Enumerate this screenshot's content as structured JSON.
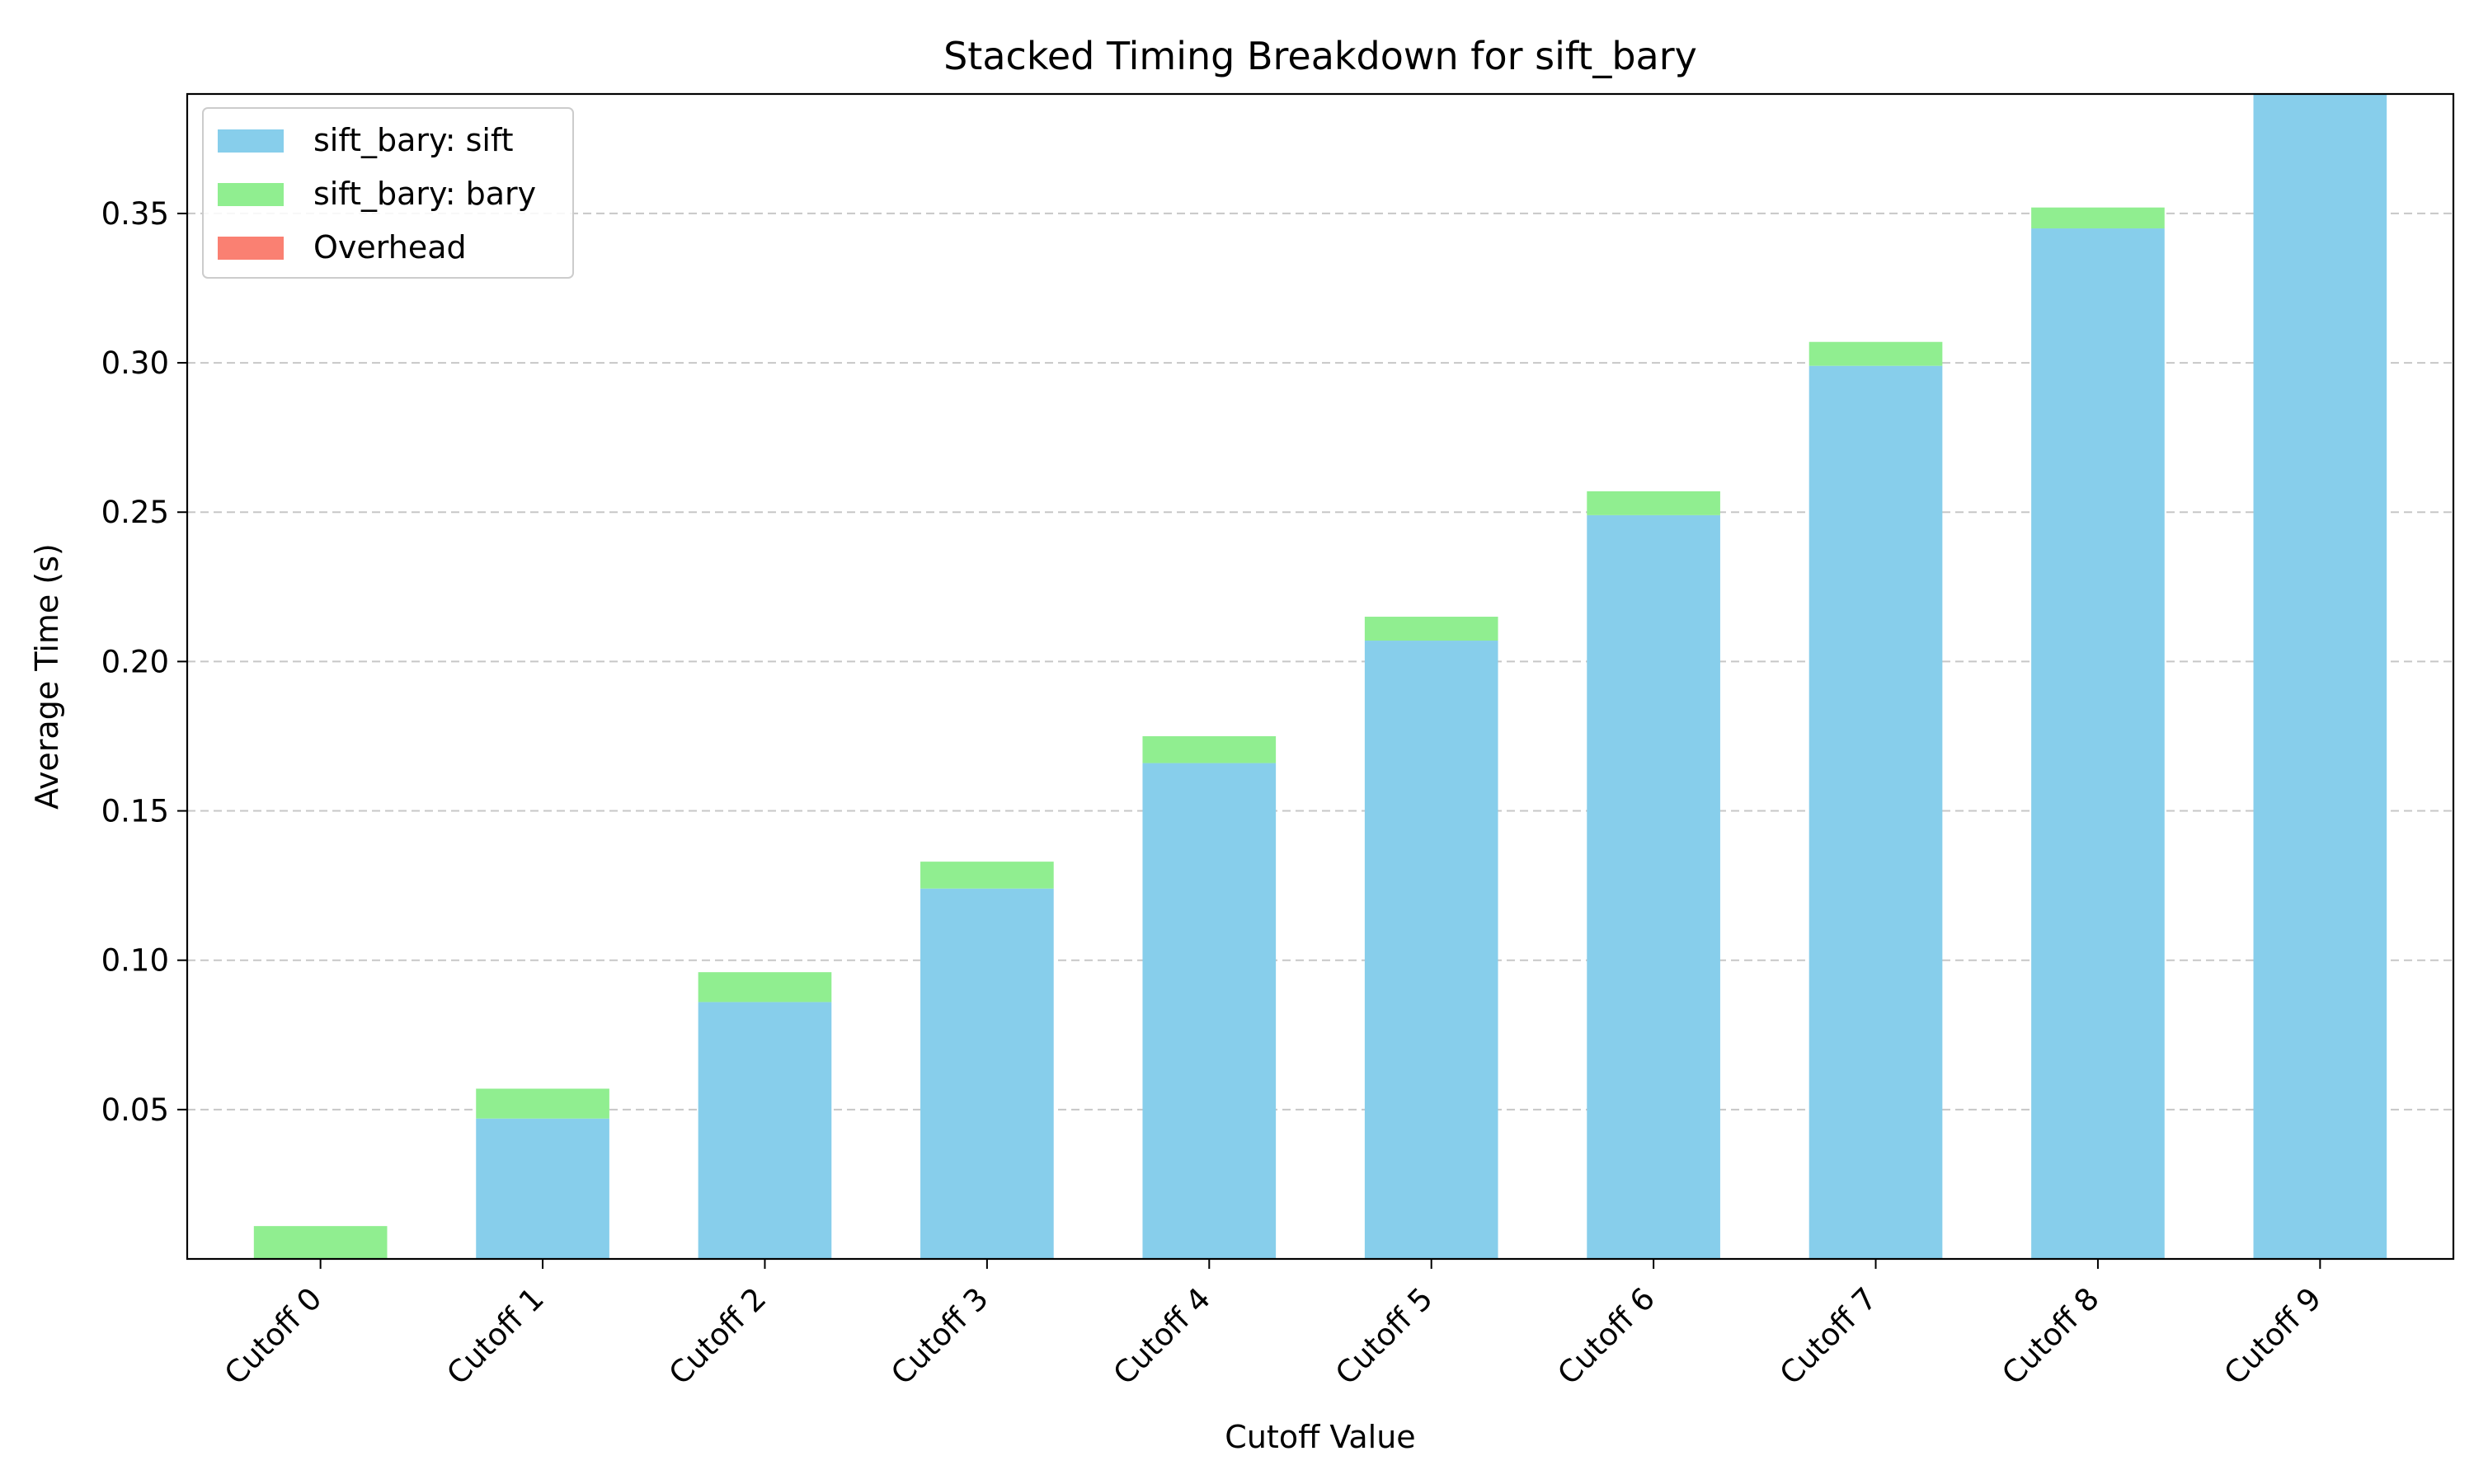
{
  "chart_data": {
    "type": "bar",
    "stacked": true,
    "title": "Stacked Timing Breakdown for sift_bary",
    "xlabel": "Cutoff Value",
    "ylabel": "Average Time (s)",
    "categories": [
      "Cutoff 0",
      "Cutoff 1",
      "Cutoff 2",
      "Cutoff 3",
      "Cutoff 4",
      "Cutoff 5",
      "Cutoff 6",
      "Cutoff 7",
      "Cutoff 8",
      "Cutoff 9"
    ],
    "series": [
      {
        "name": "sift_bary: sift",
        "color": "#87ceeb",
        "values": [
          0.0,
          0.047,
          0.086,
          0.124,
          0.166,
          0.207,
          0.249,
          0.299,
          0.345,
          0.39
        ]
      },
      {
        "name": "sift_bary: bary",
        "color": "#90ee90",
        "values": [
          0.011,
          0.01,
          0.01,
          0.009,
          0.009,
          0.008,
          0.008,
          0.008,
          0.007,
          0.0
        ]
      },
      {
        "name": "Overhead",
        "color": "#fa8072",
        "values": [
          0,
          0,
          0,
          0,
          0,
          0,
          0,
          0,
          0,
          0
        ]
      }
    ],
    "yticks": [
      "0.05",
      "0.10",
      "0.15",
      "0.20",
      "0.25",
      "0.30",
      "0.35"
    ],
    "ylim": [
      0,
      0.39
    ],
    "grid": "y-dashed",
    "legend": "top-left"
  }
}
